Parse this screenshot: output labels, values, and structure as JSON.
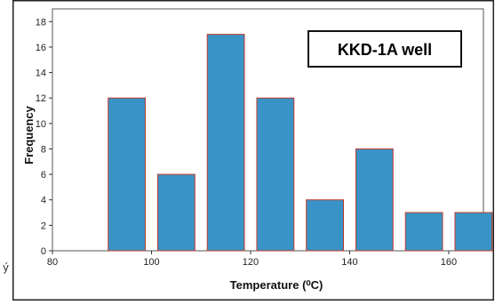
{
  "chart_data": {
    "type": "bar",
    "title": "",
    "annotation": "KKD-1A well",
    "xlabel": "Temperature (⁰C)",
    "ylabel": "Frequency",
    "x": [
      95,
      105,
      115,
      125,
      135,
      145,
      155,
      165
    ],
    "values": [
      12,
      6,
      17,
      12,
      4,
      8,
      3,
      3
    ],
    "bin_width": 10,
    "xlim": [
      80,
      167
    ],
    "ylim": [
      0,
      19
    ],
    "xticks": [
      80,
      100,
      120,
      140,
      160
    ],
    "yticks": [
      0,
      2,
      4,
      6,
      8,
      10,
      12,
      14,
      16,
      18
    ],
    "grid": false,
    "bar_color": "#3a93c6",
    "bar_edge_color": "#c0392b"
  },
  "stray_mark": "ý"
}
